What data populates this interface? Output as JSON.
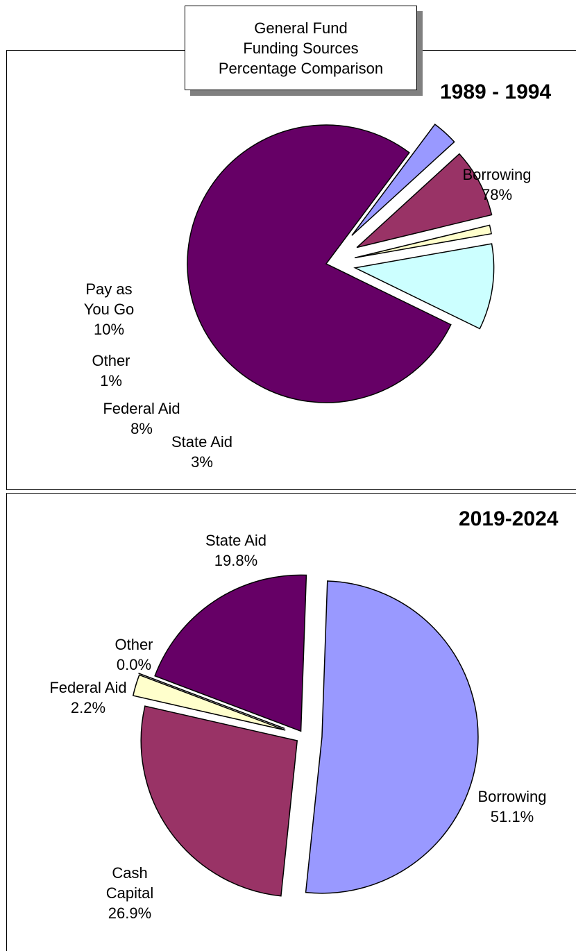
{
  "title_box": {
    "line1": "General Fund",
    "line2": "Funding Sources",
    "line3": "Percentage Comparison"
  },
  "chart_data": [
    {
      "type": "pie",
      "title": "1989 - 1994",
      "slices": [
        {
          "name": "Borrowing",
          "value": 78,
          "label": "78%",
          "color": "#660066"
        },
        {
          "name": "State Aid",
          "value": 3,
          "label": "3%",
          "color": "#9999FF"
        },
        {
          "name": "Federal Aid",
          "value": 8,
          "label": "8%",
          "color": "#993366"
        },
        {
          "name": "Other",
          "value": 1,
          "label": "1%",
          "color": "#FFFFCC"
        },
        {
          "name": "Pay as You Go",
          "value": 10,
          "label": "10%",
          "color": "#CCFFFF"
        }
      ]
    },
    {
      "type": "pie",
      "title": "2019-2024",
      "slices": [
        {
          "name": "Borrowing",
          "value": 51.1,
          "label": "51.1%",
          "color": "#9999FF"
        },
        {
          "name": "Cash Capital",
          "value": 26.9,
          "label": "26.9%",
          "color": "#993366"
        },
        {
          "name": "Federal Aid",
          "value": 2.2,
          "label": "2.2%",
          "color": "#FFFFCC"
        },
        {
          "name": "Other",
          "value": 0.0,
          "label": "0.0%",
          "color": "#CCFFFF"
        },
        {
          "name": "State Aid",
          "value": 19.8,
          "label": "19.8%",
          "color": "#660066"
        }
      ]
    }
  ],
  "labels_top": {
    "borrowing": {
      "line1": "Borrowing",
      "line2": "78%"
    },
    "pay_as_you_go": {
      "line1": "Pay as",
      "line2": "You Go",
      "line3": "10%"
    },
    "other": {
      "line1": "Other",
      "line2": "1%"
    },
    "federal_aid": {
      "line1": "Federal Aid",
      "line2": "8%"
    },
    "state_aid": {
      "line1": "State Aid",
      "line2": "3%"
    }
  },
  "labels_bottom": {
    "state_aid": {
      "line1": "State Aid",
      "line2": "19.8%"
    },
    "other": {
      "line1": "Other",
      "line2": "0.0%"
    },
    "federal_aid": {
      "line1": "Federal Aid",
      "line2": "2.2%"
    },
    "borrowing": {
      "line1": "Borrowing",
      "line2": "51.1%"
    },
    "cash_capital": {
      "line1": "Cash",
      "line2": "Capital",
      "line3": "26.9%"
    }
  }
}
